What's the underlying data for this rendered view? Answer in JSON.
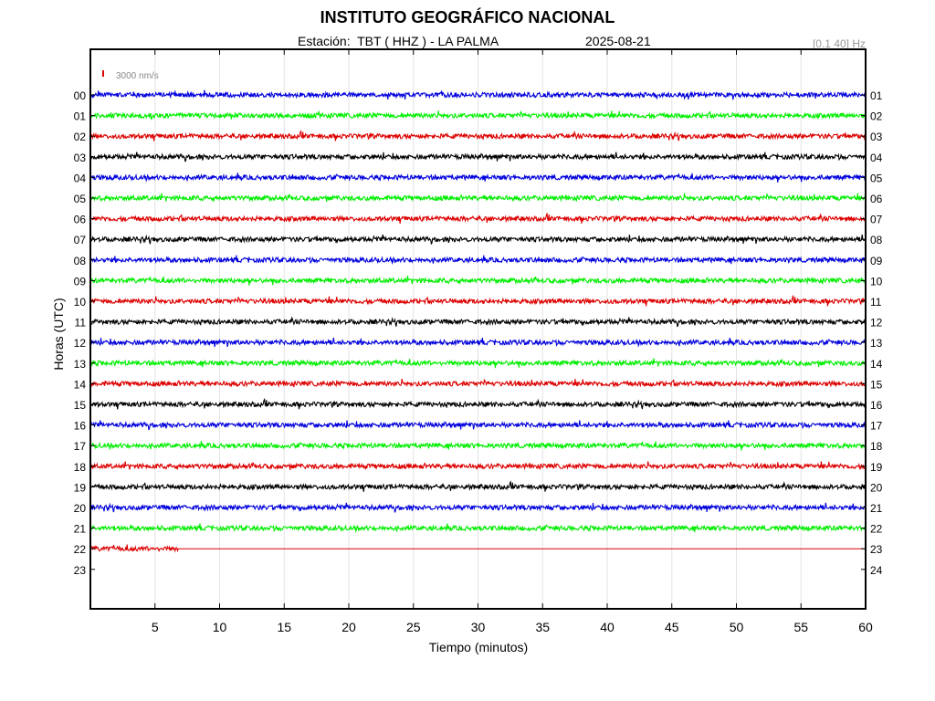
{
  "header": {
    "title": "INSTITUTO GEOGRÁFICO NACIONAL",
    "station": "Estación:  TBT ( HHZ ) - LA PALMA",
    "date": "2025-08-21",
    "filter": "[0.1 40] Hz",
    "scale_label": "3000 nm/s"
  },
  "chart_data": {
    "type": "line",
    "title": "INSTITUTO GEOGRÁFICO NACIONAL",
    "xlabel": "Tiempo (minutos)",
    "ylabel": "Horas (UTC)",
    "xlim": [
      0,
      60
    ],
    "x_ticks": [
      "5",
      "10",
      "15",
      "20",
      "25",
      "30",
      "35",
      "40",
      "45",
      "50",
      "55",
      "60"
    ],
    "y_ticks_left": [
      "00",
      "01",
      "02",
      "03",
      "04",
      "05",
      "06",
      "07",
      "08",
      "09",
      "10",
      "11",
      "12",
      "13",
      "14",
      "15",
      "16",
      "17",
      "18",
      "19",
      "20",
      "21",
      "22",
      "23"
    ],
    "y_ticks_right": [
      "01",
      "02",
      "03",
      "04",
      "05",
      "06",
      "07",
      "08",
      "09",
      "10",
      "11",
      "12",
      "13",
      "14",
      "15",
      "16",
      "17",
      "18",
      "19",
      "20",
      "21",
      "22",
      "23",
      "24"
    ],
    "grid": true,
    "trace_colors": [
      "#0000dd",
      "#00ee00",
      "#dd0000",
      "#000000"
    ],
    "series": [
      {
        "hour": "00",
        "color": "#0000dd",
        "data_end_min": 60
      },
      {
        "hour": "01",
        "color": "#00ee00",
        "data_end_min": 60
      },
      {
        "hour": "02",
        "color": "#dd0000",
        "data_end_min": 60
      },
      {
        "hour": "03",
        "color": "#000000",
        "data_end_min": 60
      },
      {
        "hour": "04",
        "color": "#0000dd",
        "data_end_min": 60
      },
      {
        "hour": "05",
        "color": "#00ee00",
        "data_end_min": 60
      },
      {
        "hour": "06",
        "color": "#dd0000",
        "data_end_min": 60
      },
      {
        "hour": "07",
        "color": "#000000",
        "data_end_min": 60
      },
      {
        "hour": "08",
        "color": "#0000dd",
        "data_end_min": 60
      },
      {
        "hour": "09",
        "color": "#00ee00",
        "data_end_min": 60
      },
      {
        "hour": "10",
        "color": "#dd0000",
        "data_end_min": 60
      },
      {
        "hour": "11",
        "color": "#000000",
        "data_end_min": 60
      },
      {
        "hour": "12",
        "color": "#0000dd",
        "data_end_min": 60
      },
      {
        "hour": "13",
        "color": "#00ee00",
        "data_end_min": 60
      },
      {
        "hour": "14",
        "color": "#dd0000",
        "data_end_min": 60
      },
      {
        "hour": "15",
        "color": "#000000",
        "data_end_min": 60
      },
      {
        "hour": "16",
        "color": "#0000dd",
        "data_end_min": 60
      },
      {
        "hour": "17",
        "color": "#00ee00",
        "data_end_min": 60
      },
      {
        "hour": "18",
        "color": "#dd0000",
        "data_end_min": 60
      },
      {
        "hour": "19",
        "color": "#000000",
        "data_end_min": 60
      },
      {
        "hour": "20",
        "color": "#0000dd",
        "data_end_min": 60
      },
      {
        "hour": "21",
        "color": "#00ee00",
        "data_end_min": 60
      },
      {
        "hour": "22",
        "color": "#dd0000",
        "data_end_min": 6.8
      }
    ]
  }
}
